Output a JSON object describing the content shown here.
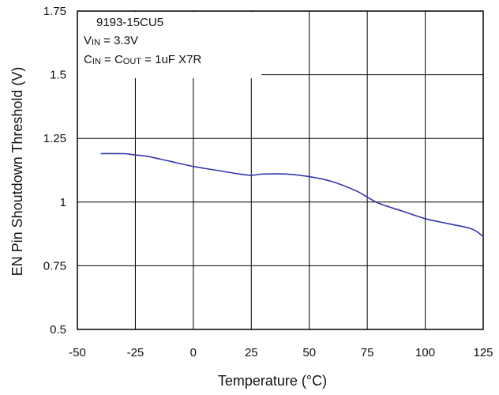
{
  "chart_data": {
    "type": "line",
    "title": "",
    "xlabel": "Temperature (°C)",
    "ylabel": "EN Pin Shoutdown Threshold (V)",
    "xlim": [
      -50,
      125
    ],
    "ylim": [
      0.5,
      1.75
    ],
    "x_ticks": [
      "-50",
      "-25",
      "0",
      "25",
      "50",
      "75",
      "100",
      "125"
    ],
    "y_ticks": [
      "0.5",
      "0.75",
      "1",
      "1.25",
      "1.5",
      "1.75"
    ],
    "grid": true,
    "line_color": "#3535b0",
    "annotations": {
      "part": "9193-15CU5",
      "vin": {
        "main": "V",
        "sub": "IN",
        "rest": " = 3.3V"
      },
      "caps": {
        "c1": "C",
        "c1sub": "IN",
        "mid": " = C",
        "c2sub": "OUT",
        "rest": " = 1uF X7R"
      }
    },
    "series": [
      {
        "x": [
          -40,
          -30,
          -25,
          -20,
          -10,
          0,
          10,
          20,
          25,
          30,
          40,
          50,
          60,
          70,
          75,
          80,
          90,
          100,
          110,
          120,
          125
        ],
        "y": [
          1.19,
          1.19,
          1.185,
          1.18,
          1.16,
          1.14,
          1.125,
          1.11,
          1.105,
          1.11,
          1.11,
          1.1,
          1.08,
          1.045,
          1.02,
          0.995,
          0.965,
          0.935,
          0.915,
          0.895,
          0.865
        ]
      }
    ]
  }
}
